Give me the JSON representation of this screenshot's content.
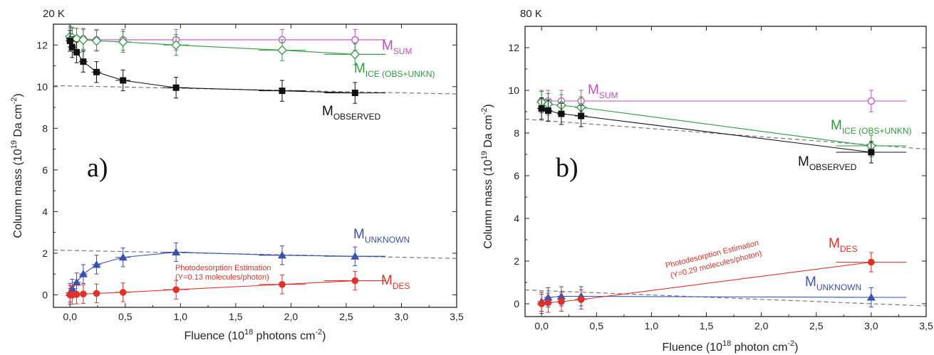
{
  "figure": {
    "panels": [
      {
        "temperature": "20 K",
        "tag": "a)"
      },
      {
        "temperature": "80 K",
        "tag": "b)"
      }
    ]
  },
  "colors": {
    "sum": "#c04ec4",
    "ice": "#2e9a3e",
    "observed": "#111111",
    "unknown": "#3a4fb0",
    "des": "#e0302a",
    "dashed": "#777777"
  },
  "chart_data": [
    {
      "type": "scatter",
      "panel": "a)",
      "temperature": "20 K",
      "xlabel": {
        "pre": "Fluence (10",
        "sup": "18",
        "mid": " photons cm",
        "sup2": "-2",
        "post": ")"
      },
      "ylabel": {
        "pre": "Column mass (10",
        "sup": "19",
        "mid": " Da cm",
        "sup2": "-2",
        "post": ")"
      },
      "xlim": [
        -0.15,
        3.5
      ],
      "ylim": [
        -0.6,
        13
      ],
      "xticks": [
        "0,0",
        "0,5",
        "1,0",
        "1,5",
        "2,0",
        "2,5",
        "3,0",
        "3,5"
      ],
      "xtick_values": [
        0,
        0.5,
        1.0,
        1.5,
        2.0,
        2.5,
        3.0,
        3.5
      ],
      "yticks": [
        "0",
        "2",
        "4",
        "6",
        "8",
        "10",
        "12"
      ],
      "ytick_values": [
        0,
        2,
        4,
        6,
        8,
        10,
        12
      ],
      "series": [
        {
          "key": "sum",
          "label": "M",
          "sub": "SUM",
          "marker": "open-circle",
          "x": [
            0,
            0.02,
            0.06,
            0.12,
            0.24,
            0.48,
            0.96,
            1.92,
            2.58
          ],
          "y": [
            12.3,
            12.3,
            12.3,
            12.3,
            12.25,
            12.25,
            12.25,
            12.25,
            12.25
          ],
          "x_end": 2.85,
          "fit": "flat"
        },
        {
          "key": "ice",
          "label": "M",
          "sub": "ICE (OBS+UNKN)",
          "marker": "open-diamond",
          "x": [
            0,
            0.02,
            0.06,
            0.12,
            0.24,
            0.48,
            0.96,
            1.92,
            2.58
          ],
          "y": [
            12.4,
            12.35,
            12.3,
            12.25,
            12.2,
            12.15,
            12.0,
            11.75,
            11.55
          ],
          "x_end": 2.85
        },
        {
          "key": "observed",
          "label": "M",
          "sub": "OBSERVED",
          "marker": "filled-square",
          "x": [
            0,
            0.02,
            0.06,
            0.12,
            0.24,
            0.48,
            0.96,
            1.92,
            2.58
          ],
          "y": [
            12.2,
            11.9,
            11.65,
            11.2,
            10.7,
            10.3,
            9.95,
            9.8,
            9.7
          ]
        },
        {
          "key": "unknown",
          "label": "M",
          "sub": "UNKNOWN",
          "marker": "filled-triangle",
          "x": [
            0,
            0.02,
            0.06,
            0.12,
            0.24,
            0.48,
            0.96,
            1.92,
            2.58
          ],
          "y": [
            0.1,
            0.3,
            0.6,
            1.0,
            1.45,
            1.8,
            2.05,
            1.9,
            1.85
          ],
          "x_end": 2.85
        },
        {
          "key": "des",
          "label": "M",
          "sub": "DES",
          "marker": "filled-circle",
          "x": [
            0,
            0.02,
            0.06,
            0.12,
            0.24,
            0.48,
            0.96,
            1.92,
            2.58
          ],
          "y": [
            0.0,
            0.0,
            0.02,
            0.04,
            0.07,
            0.12,
            0.25,
            0.5,
            0.68
          ],
          "x_end": 2.85
        }
      ],
      "dashed_lines": [
        {
          "from": [
            -0.15,
            10.05
          ],
          "to": [
            3.5,
            9.65
          ]
        },
        {
          "from": [
            -0.15,
            2.15
          ],
          "to": [
            3.5,
            1.75
          ]
        }
      ],
      "annotations": [
        {
          "text": "Photodesorption Estimation",
          "x": 1.42,
          "y": 1.7
        },
        {
          "text": "(Y=0.13 molecules/photon)",
          "x": 1.42,
          "y": 1.2
        }
      ]
    },
    {
      "type": "scatter",
      "panel": "b)",
      "temperature": "80 K",
      "xlabel": {
        "pre": "Fluence (10",
        "sup": "18",
        "mid": " photon cm",
        "sup2": "-2",
        "post": ")"
      },
      "ylabel": {
        "pre": "Column mass (10",
        "sup": "19",
        "mid": " Da cm",
        "sup2": "-2",
        "post": ")"
      },
      "xlim": [
        -0.15,
        3.5
      ],
      "ylim": [
        -0.6,
        13
      ],
      "xticks": [
        "0,0",
        "0,5",
        "1,0",
        "1,5",
        "2,0",
        "2,5",
        "3,0",
        "3,5"
      ],
      "xtick_values": [
        0,
        0.5,
        1.0,
        1.5,
        2.0,
        2.5,
        3.0,
        3.5
      ],
      "yticks": [
        "0",
        "2",
        "4",
        "6",
        "8",
        "10",
        "12"
      ],
      "ytick_values": [
        0,
        2,
        4,
        6,
        8,
        10,
        12
      ],
      "series": [
        {
          "key": "sum",
          "label": "M",
          "sub": "SUM",
          "marker": "open-circle",
          "x": [
            0,
            0.06,
            0.18,
            0.36,
            3.0
          ],
          "y": [
            9.5,
            9.5,
            9.5,
            9.5,
            9.5
          ],
          "fit": "flat"
        },
        {
          "key": "ice",
          "label": "M",
          "sub": "ICE (OBS+UNKN)",
          "marker": "open-diamond",
          "x": [
            0,
            0.06,
            0.18,
            0.36,
            3.0
          ],
          "y": [
            9.45,
            9.35,
            9.3,
            9.2,
            7.4
          ]
        },
        {
          "key": "observed",
          "label": "M",
          "sub": "OBSERVED",
          "marker": "filled-square",
          "x": [
            0,
            0.06,
            0.18,
            0.36,
            3.0
          ],
          "y": [
            9.15,
            9.05,
            8.9,
            8.8,
            7.1
          ]
        },
        {
          "key": "unknown",
          "label": "M",
          "sub": "UNKNOWN",
          "marker": "filled-triangle",
          "x": [
            0,
            0.06,
            0.18,
            0.36,
            3.0
          ],
          "y": [
            0.1,
            0.3,
            0.35,
            0.35,
            0.3
          ]
        },
        {
          "key": "des",
          "label": "M",
          "sub": "DES",
          "marker": "filled-circle",
          "x": [
            0,
            0.06,
            0.18,
            0.36,
            3.0
          ],
          "y": [
            0.0,
            0.05,
            0.1,
            0.2,
            1.95
          ]
        }
      ],
      "dashed_lines": [
        {
          "from": [
            -0.15,
            8.65
          ],
          "to": [
            3.5,
            7.25
          ]
        },
        {
          "from": [
            -0.15,
            0.65
          ],
          "to": [
            3.5,
            -0.1
          ]
        }
      ],
      "annotations": [
        {
          "text": "Photodesorption Estimation",
          "x": 1.6,
          "y": 1.5,
          "rotate": -14
        },
        {
          "text": "(Y=0.29 molecules/photon)",
          "x": 1.65,
          "y": 0.95,
          "rotate": -14
        }
      ]
    }
  ]
}
